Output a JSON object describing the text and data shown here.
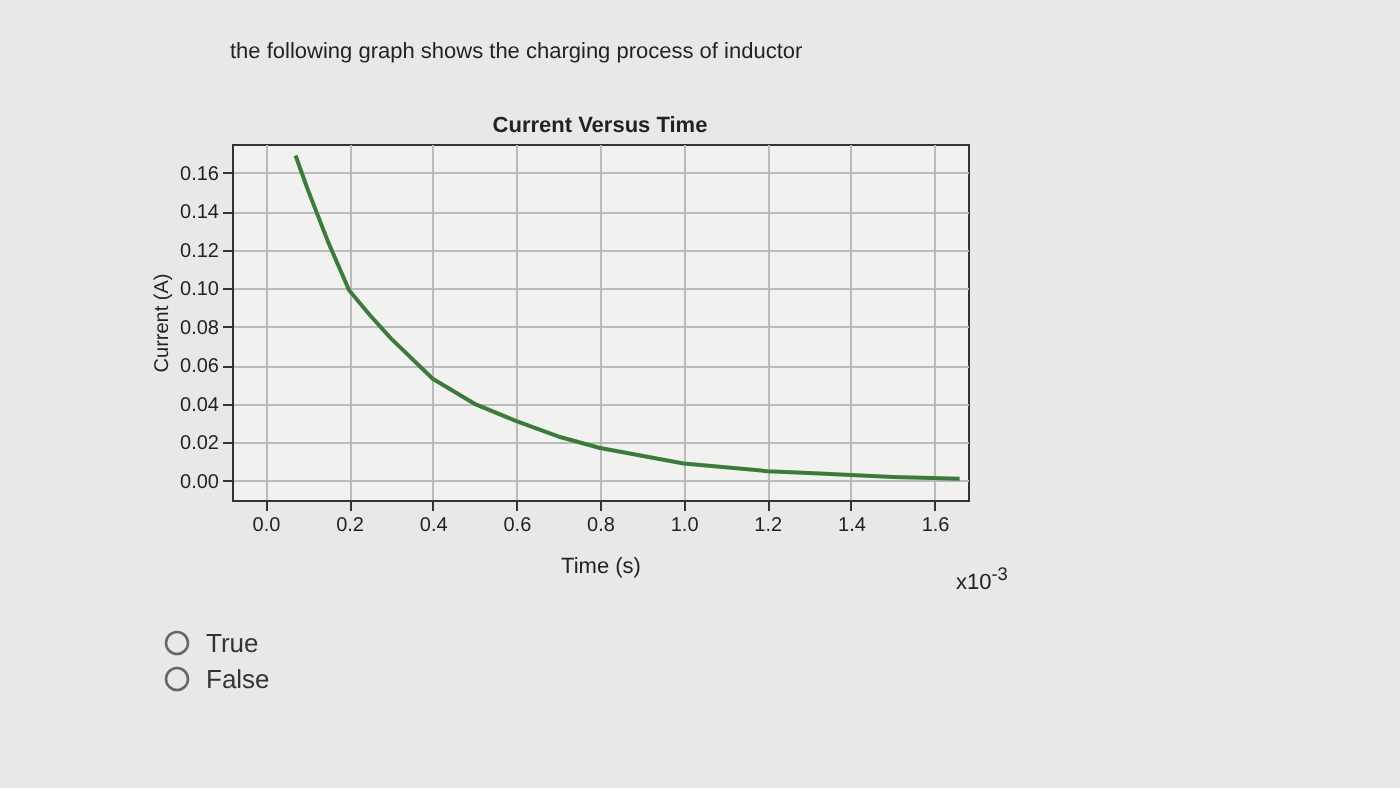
{
  "chart_data": {
    "type": "line",
    "title": "Current Versus Time",
    "xlabel": "Time (s)",
    "ylabel": "Current (A)",
    "annotations": [
      "the following graph shows the charging process of inductor",
      "x10$^{-3}$",
      "True",
      "False"
    ],
    "x": [
      0.072,
      0.1,
      0.15,
      0.2,
      0.25,
      0.3,
      0.4,
      0.5,
      0.6,
      0.7,
      0.8,
      0.9,
      1.0,
      1.1,
      1.2,
      1.3,
      1.4,
      1.5,
      1.66
    ],
    "series": [
      {
        "color": "#3b7a3b",
        "values": [
          0.169,
          0.152,
          0.124,
          0.099,
          0.086,
          0.074,
          0.053,
          0.04,
          0.031,
          0.023,
          0.017,
          0.013,
          0.009,
          0.007,
          0.005,
          0.004,
          0.003,
          0.002,
          0.001
        ]
      }
    ],
    "xlim": [
      -0.08,
      1.68
    ],
    "ylim": [
      -0.01,
      0.175
    ],
    "xticks": [
      {
        "value": 0,
        "label": "0.0"
      },
      {
        "value": 0.2,
        "label": "0.2"
      },
      {
        "value": 0.4,
        "label": "0.4"
      },
      {
        "value": 0.6,
        "label": "0.6"
      },
      {
        "value": 0.8,
        "label": "0.8"
      },
      {
        "value": 1,
        "label": "1.0"
      },
      {
        "value": 1.2,
        "label": "1.2"
      },
      {
        "value": 1.4,
        "label": "1.4"
      },
      {
        "value": 1.6,
        "label": "1.6"
      }
    ],
    "yticks": [
      {
        "value": 0,
        "label": "0.00"
      },
      {
        "value": 0.02,
        "label": "0.02"
      },
      {
        "value": 0.04,
        "label": "0.04"
      },
      {
        "value": 0.06,
        "label": "0.06"
      },
      {
        "value": 0.08,
        "label": "0.08"
      },
      {
        "value": 0.1,
        "label": "0.10"
      },
      {
        "value": 0.12,
        "label": "0.12"
      },
      {
        "value": 0.14,
        "label": "0.14"
      },
      {
        "value": 0.16,
        "label": "0.16"
      }
    ],
    "grid": true,
    "marker": "none",
    "line_style": "solid",
    "legend": false
  }
}
